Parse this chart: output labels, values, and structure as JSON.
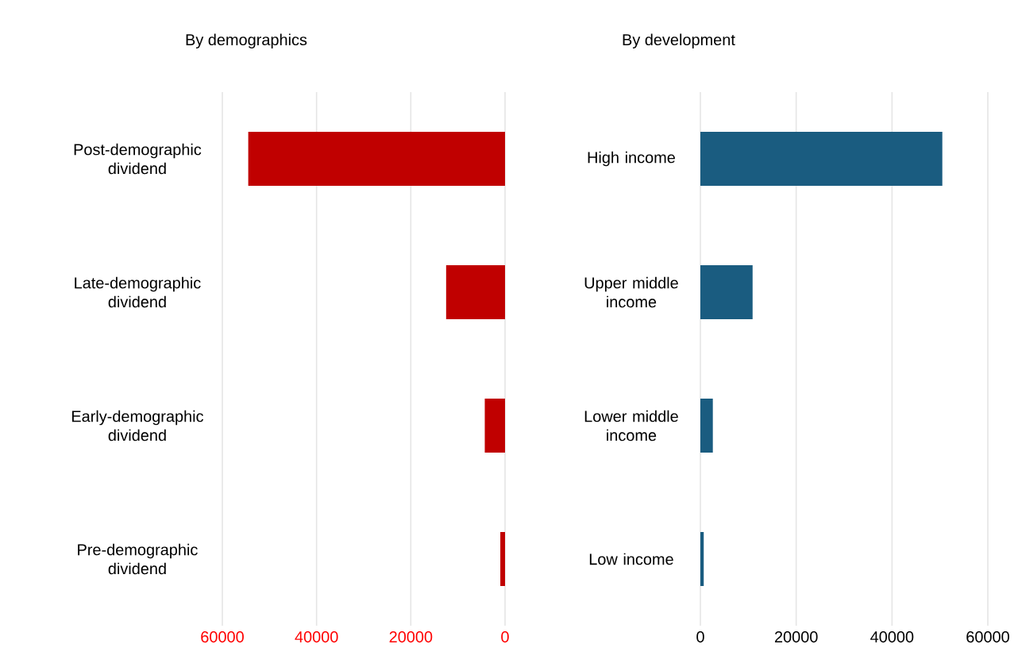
{
  "chart_data": [
    {
      "type": "bar",
      "orientation": "horizontal",
      "title": "By demographics",
      "categories": [
        "Post-demographic dividend",
        "Late-demographic dividend",
        "Early-demographic dividend",
        "Pre-demographic dividend"
      ],
      "values": [
        54500,
        12500,
        4300,
        1000
      ],
      "color": "#c00000",
      "xlim": [
        60000,
        0
      ],
      "xticks": [
        60000,
        40000,
        20000,
        0
      ],
      "grid": "x"
    },
    {
      "type": "bar",
      "orientation": "horizontal",
      "title": "By development",
      "categories": [
        "High income",
        "Upper middle income",
        "Lower middle income",
        "Low income"
      ],
      "values": [
        50500,
        10900,
        2600,
        700
      ],
      "color": "#1a5c80",
      "xlim": [
        0,
        60000
      ],
      "xticks": [
        0,
        20000,
        40000,
        60000
      ],
      "grid": "x"
    }
  ]
}
